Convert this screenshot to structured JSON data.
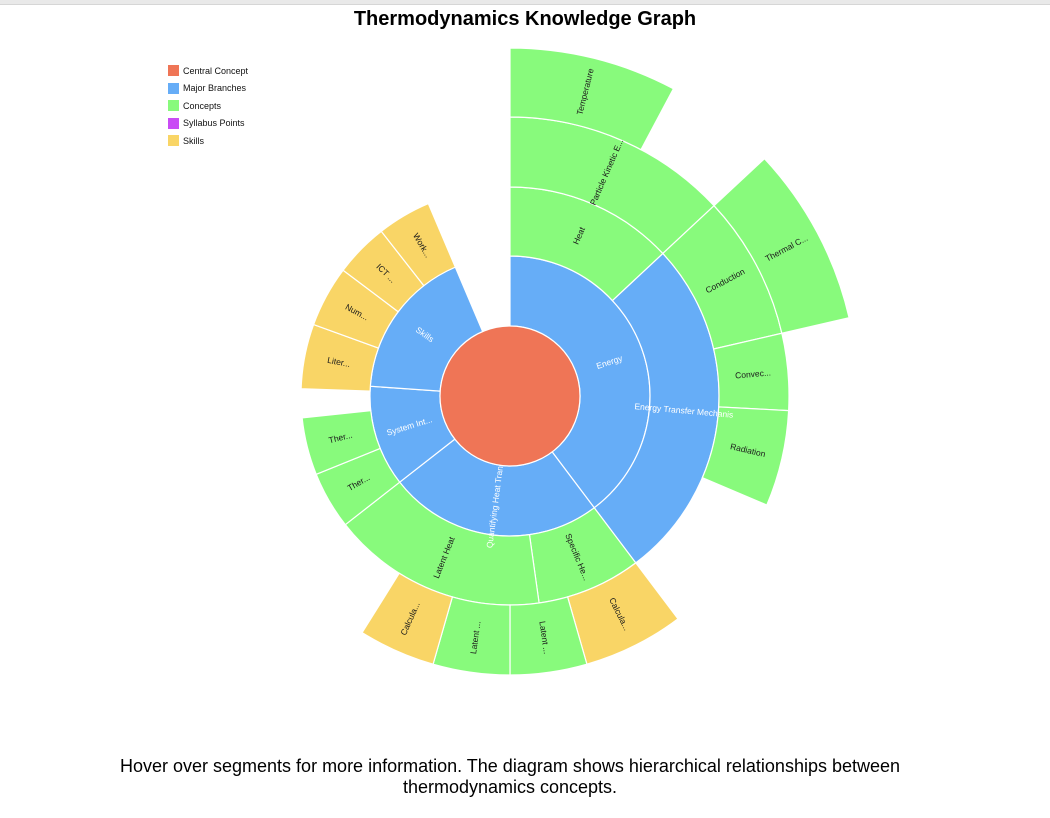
{
  "title": "Thermodynamics Knowledge Graph",
  "footer": "Hover over segments for more information. The diagram shows hierarchical relationships between thermodynamics concepts.",
  "legend": [
    {
      "label": "Central Concept",
      "color": "#ef7556"
    },
    {
      "label": "Major Branches",
      "color": "#66adf7"
    },
    {
      "label": "Concepts",
      "color": "#88fa7c"
    },
    {
      "label": "Syllabus Points",
      "color": "#c94cf5"
    },
    {
      "label": "Skills",
      "color": "#f9d566"
    }
  ],
  "colors": {
    "central": "#ef7556",
    "branch": "#66adf7",
    "concept": "#88fa7c",
    "syllabus": "#c94cf5",
    "skill": "#f9d566"
  },
  "segments": [
    {
      "name": "seg-energy",
      "depth": 1,
      "kind": "branch",
      "a0": 0,
      "a1": 143,
      "label": "Energy"
    },
    {
      "name": "seg-energy-transfer",
      "depth": 2,
      "kind": "branch",
      "a0": 47,
      "a1": 143,
      "label": "Energy Transfer Mechanis"
    },
    {
      "name": "seg-quantifying-heat",
      "depth": 1,
      "kind": "branch",
      "a0": 143,
      "a1": 232,
      "label": "Quantifying Heat Transfer"
    },
    {
      "name": "seg-system-int",
      "depth": 1,
      "kind": "branch",
      "a0": 232,
      "a1": 274,
      "label": "System Int..."
    },
    {
      "name": "seg-skills",
      "depth": 1,
      "kind": "branch",
      "a0": 274,
      "a1": 337,
      "label": "Skills"
    },
    {
      "name": "seg-heat",
      "depth": 2,
      "kind": "concept",
      "a0": 0,
      "a1": 47,
      "label": "Heat"
    },
    {
      "name": "seg-particle-kinetic",
      "depth": 3,
      "kind": "concept",
      "a0": 0,
      "a1": 47,
      "label": "Particle Kinetic E..."
    },
    {
      "name": "seg-temperature",
      "depth": 4,
      "kind": "concept",
      "a0": 0,
      "a1": 28,
      "label": "Temperature"
    },
    {
      "name": "seg-conduction",
      "depth": 3,
      "kind": "concept",
      "a0": 47,
      "a1": 77,
      "label": "Conduction"
    },
    {
      "name": "seg-thermal-c",
      "depth": 4,
      "kind": "concept",
      "a0": 47,
      "a1": 77,
      "label": "Thermal C..."
    },
    {
      "name": "seg-convection",
      "depth": 3,
      "kind": "concept",
      "a0": 77,
      "a1": 93,
      "label": "Convec..."
    },
    {
      "name": "seg-radiation",
      "depth": 3,
      "kind": "concept",
      "a0": 93,
      "a1": 113,
      "label": "Radiation"
    },
    {
      "name": "seg-specific-heat",
      "depth": 2,
      "kind": "concept",
      "a0": 143,
      "a1": 172,
      "label": "Specific He..."
    },
    {
      "name": "seg-calc-specific",
      "depth": 3,
      "kind": "skill",
      "a0": 143,
      "a1": 164,
      "label": "Calcula..."
    },
    {
      "name": "seg-latent-heat",
      "depth": 2,
      "kind": "concept",
      "a0": 172,
      "a1": 232,
      "label": "Latent Heat"
    },
    {
      "name": "seg-latent-1",
      "depth": 3,
      "kind": "concept",
      "a0": 164,
      "a1": 180,
      "label": "Latent ..."
    },
    {
      "name": "seg-latent-2",
      "depth": 3,
      "kind": "concept",
      "a0": 180,
      "a1": 196,
      "label": "Latent ..."
    },
    {
      "name": "seg-calc-latent",
      "depth": 3,
      "kind": "skill",
      "a0": 196,
      "a1": 212,
      "label": "Calcula..."
    },
    {
      "name": "seg-ther-1",
      "depth": 2,
      "kind": "concept",
      "a0": 232,
      "a1": 248,
      "label": "Ther..."
    },
    {
      "name": "seg-ther-2",
      "depth": 2,
      "kind": "concept",
      "a0": 248,
      "a1": 264,
      "label": "Ther..."
    },
    {
      "name": "seg-liter",
      "depth": 2,
      "kind": "skill",
      "a0": 272,
      "a1": 290,
      "label": "Liter..."
    },
    {
      "name": "seg-num",
      "depth": 2,
      "kind": "skill",
      "a0": 290,
      "a1": 307,
      "label": "Num..."
    },
    {
      "name": "seg-ict",
      "depth": 2,
      "kind": "skill",
      "a0": 307,
      "a1": 322,
      "label": "ICT ..."
    },
    {
      "name": "seg-work",
      "depth": 2,
      "kind": "skill",
      "a0": 322,
      "a1": 337,
      "label": "Work..."
    }
  ]
}
